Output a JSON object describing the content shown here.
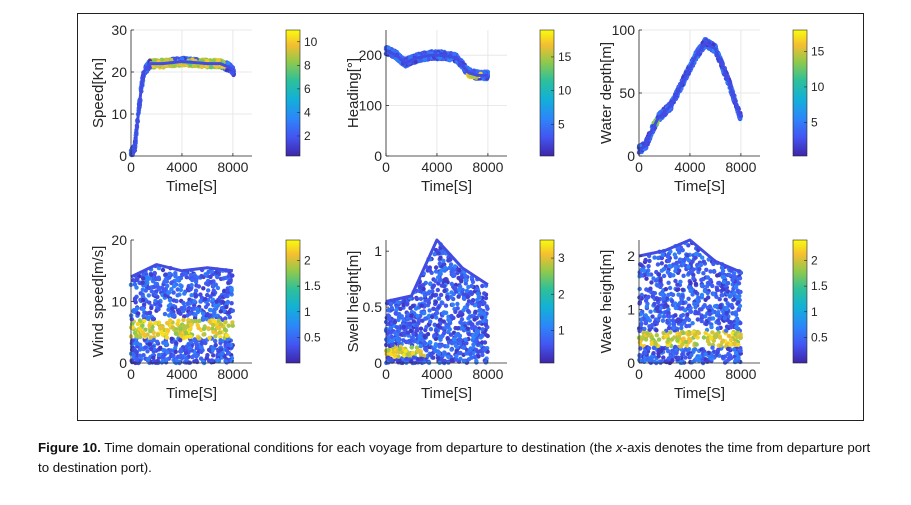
{
  "caption": {
    "label": "Figure 10.",
    "text_before": " Time domain operational conditions for each voyage from departure to destination (the ",
    "italic": "x",
    "text_after": "-axis denotes the time from departure port to destination port)."
  },
  "chart_data": [
    {
      "type": "scatter",
      "xlabel": "Time[S]",
      "ylabel": "Speed[Kn]",
      "xlim": [
        0,
        9500
      ],
      "ylim": [
        0,
        30
      ],
      "xticks": [
        0,
        4000,
        8000
      ],
      "xtick_labels": [
        "0",
        "4000",
        "8000"
      ],
      "yticks": [
        0,
        10,
        20,
        30
      ],
      "ytick_labels": [
        "0",
        "10",
        "20",
        "30"
      ],
      "colorbar": {
        "ticks": [
          2,
          4,
          6,
          8,
          10
        ],
        "labels": [
          "2",
          "4",
          "6",
          "8",
          "10"
        ],
        "range": [
          0.3,
          11
        ]
      },
      "grid": true,
      "series": [
        {
          "x": [
            0,
            300,
            500,
            800,
            1000,
            1500,
            2500,
            4000,
            6000,
            7000,
            7800,
            8100
          ],
          "y": [
            0.5,
            2,
            8,
            16,
            20,
            22,
            22,
            22.5,
            22,
            22,
            21,
            20
          ]
        }
      ],
      "dense_region": {
        "x": [
          1500,
          7500
        ],
        "y": [
          21,
          23
        ],
        "peak": 10
      }
    },
    {
      "type": "scatter",
      "xlabel": "Time[S]",
      "ylabel": "Heading[°]",
      "xlim": [
        0,
        9500
      ],
      "ylim": [
        0,
        250
      ],
      "xticks": [
        0,
        4000,
        8000
      ],
      "xtick_labels": [
        "0",
        "4000",
        "8000"
      ],
      "yticks": [
        0,
        100,
        200
      ],
      "ytick_labels": [
        "0",
        "100",
        "200"
      ],
      "colorbar": {
        "ticks": [
          5,
          10,
          15
        ],
        "labels": [
          "5",
          "10",
          "15"
        ],
        "range": [
          0.3,
          19
        ]
      },
      "grid": true,
      "series": [
        {
          "x": [
            0,
            800,
            1500,
            2500,
            3500,
            4500,
            5500,
            6500,
            7200,
            8000
          ],
          "y": [
            210,
            200,
            185,
            195,
            200,
            200,
            195,
            165,
            160,
            160
          ]
        }
      ],
      "dense_region": {
        "x": [
          6200,
          7500
        ],
        "y": [
          155,
          165
        ],
        "peak": 19
      }
    },
    {
      "type": "scatter",
      "xlabel": "Time[S]",
      "ylabel": "Water depth[m]",
      "xlim": [
        0,
        9500
      ],
      "ylim": [
        0,
        100
      ],
      "xticks": [
        0,
        4000,
        8000
      ],
      "xtick_labels": [
        "0",
        "4000",
        "8000"
      ],
      "yticks": [
        0,
        50,
        100
      ],
      "ytick_labels": [
        "0",
        "50",
        "100"
      ],
      "colorbar": {
        "ticks": [
          5,
          10,
          15
        ],
        "labels": [
          "5",
          "10",
          "15"
        ],
        "range": [
          0.3,
          18
        ]
      },
      "grid": true,
      "series": [
        {
          "x": [
            0,
            500,
            1000,
            1500,
            2500,
            3500,
            4500,
            5200,
            6000,
            7000,
            8000
          ],
          "y": [
            5,
            8,
            20,
            30,
            40,
            60,
            80,
            90,
            85,
            60,
            30
          ]
        }
      ],
      "dense_region": {
        "x": [
          1000,
          1500
        ],
        "y": [
          24,
          30
        ],
        "peak": 14
      }
    },
    {
      "type": "scatter",
      "xlabel": "Time[S]",
      "ylabel": "Wind speed[m/s]",
      "xlim": [
        0,
        9500
      ],
      "ylim": [
        0,
        20
      ],
      "xticks": [
        0,
        4000,
        8000
      ],
      "xtick_labels": [
        "0",
        "4000",
        "8000"
      ],
      "yticks": [
        0,
        10,
        20
      ],
      "ytick_labels": [
        "0",
        "10",
        "20"
      ],
      "colorbar": {
        "ticks": [
          0.5,
          1,
          1.5,
          2
        ],
        "labels": [
          "0.5",
          "1",
          "1.5",
          "2"
        ],
        "range": [
          0,
          2.4
        ]
      },
      "grid": false,
      "series": [
        {
          "x": [
            0,
            2000,
            4000,
            6000,
            8000
          ],
          "y": [
            14,
            16,
            15,
            15.5,
            15
          ]
        }
      ],
      "dense_region": {
        "x": [
          0,
          8000
        ],
        "y": [
          4,
          7
        ],
        "peak": 2.3
      }
    },
    {
      "type": "scatter",
      "xlabel": "Time[S]",
      "ylabel": "Swell height[m]",
      "xlim": [
        0,
        9500
      ],
      "ylim": [
        0,
        1.1
      ],
      "xticks": [
        0,
        4000,
        8000
      ],
      "xtick_labels": [
        "0",
        "4000",
        "8000"
      ],
      "yticks": [
        0,
        0.5,
        1
      ],
      "ytick_labels": [
        "0",
        "0.5",
        "1"
      ],
      "colorbar": {
        "ticks": [
          1,
          2,
          3
        ],
        "labels": [
          "1",
          "2",
          "3"
        ],
        "range": [
          0.1,
          3.5
        ]
      },
      "grid": false,
      "series": [
        {
          "x": [
            0,
            2000,
            4000,
            6000,
            8000
          ],
          "y": [
            0.55,
            0.6,
            1.1,
            0.85,
            0.7
          ]
        }
      ],
      "dense_region": {
        "x": [
          0,
          3000
        ],
        "y": [
          0.05,
          0.15
        ],
        "peak": 3.4
      }
    },
    {
      "type": "scatter",
      "xlabel": "Time[S]",
      "ylabel": "Wave height[m]",
      "xlim": [
        0,
        9500
      ],
      "ylim": [
        0,
        2.3
      ],
      "xticks": [
        0,
        4000,
        8000
      ],
      "xtick_labels": [
        "0",
        "4000",
        "8000"
      ],
      "yticks": [
        0,
        1,
        2
      ],
      "ytick_labels": [
        "0",
        "1",
        "2"
      ],
      "colorbar": {
        "ticks": [
          0.5,
          1,
          1.5,
          2
        ],
        "labels": [
          "0.5",
          "1",
          "1.5",
          "2"
        ],
        "range": [
          0,
          2.4
        ]
      },
      "grid": false,
      "series": [
        {
          "x": [
            0,
            2000,
            4000,
            6000,
            8000
          ],
          "y": [
            2.0,
            2.1,
            2.3,
            1.9,
            1.7
          ]
        }
      ],
      "dense_region": {
        "x": [
          0,
          8000
        ],
        "y": [
          0.3,
          0.6
        ],
        "peak": 2.3
      }
    }
  ]
}
